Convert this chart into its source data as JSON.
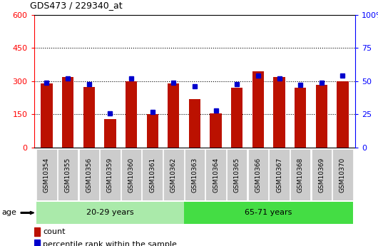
{
  "title": "GDS473 / 229340_at",
  "samples": [
    "GSM10354",
    "GSM10355",
    "GSM10356",
    "GSM10359",
    "GSM10360",
    "GSM10361",
    "GSM10362",
    "GSM10363",
    "GSM10364",
    "GSM10365",
    "GSM10366",
    "GSM10367",
    "GSM10368",
    "GSM10369",
    "GSM10370"
  ],
  "counts": [
    290,
    320,
    275,
    130,
    300,
    150,
    290,
    220,
    155,
    270,
    345,
    320,
    270,
    285,
    300
  ],
  "percentiles": [
    49,
    52,
    48,
    26,
    52,
    27,
    49,
    46,
    28,
    48,
    54,
    52,
    47,
    49,
    54
  ],
  "ylim_left": [
    0,
    600
  ],
  "ylim_right": [
    0,
    100
  ],
  "yticks_left": [
    0,
    150,
    300,
    450,
    600
  ],
  "yticks_right": [
    0,
    25,
    50,
    75,
    100
  ],
  "groups": [
    {
      "label": "20-29 years",
      "start": 0,
      "end": 7,
      "color": "#AAEAAA"
    },
    {
      "label": "65-71 years",
      "start": 7,
      "end": 15,
      "color": "#44DD44"
    }
  ],
  "bar_color": "#BB1100",
  "percentile_color": "#0000CC",
  "group_label": "age",
  "legend_count_label": "count",
  "legend_percentile_label": "percentile rank within the sample",
  "tick_bg_color": "#CCCCCC",
  "bar_width": 0.55
}
